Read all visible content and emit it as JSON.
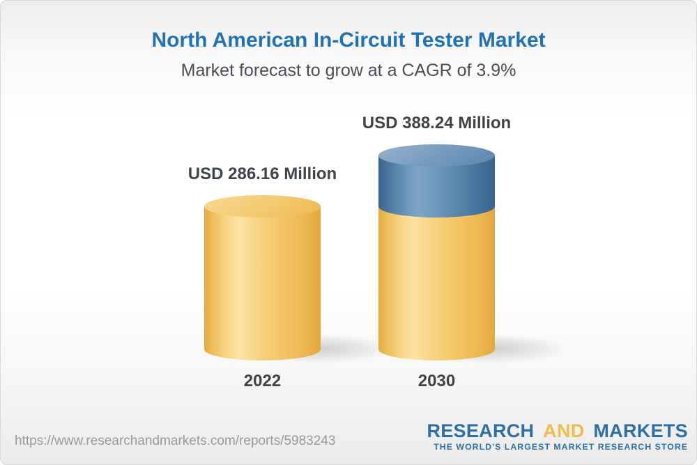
{
  "chart_data": {
    "type": "bar",
    "bar_style": "3d-cylinder",
    "title": "North American In-Circuit Tester Market",
    "subtitle": "Market forecast to grow at a CAGR of 3.9%",
    "categories": [
      "2022",
      "2030"
    ],
    "values": [
      286.16,
      388.24
    ],
    "value_labels": [
      "USD 286.16 Million",
      "USD 388.24 Million"
    ],
    "unit": "USD Million",
    "cagr_percent": 3.9,
    "grid": false,
    "legend_position": "none",
    "axes_visible": false,
    "colors": {
      "base_segment": "#F5C868",
      "growth_segment": "#5A86AF",
      "title_blue": "#2173B4",
      "label_dark": "#3F4449",
      "url_gray": "#97999B"
    }
  },
  "footer": {
    "url": "https://www.researchandmarkets.com/reports/5983243",
    "logo": {
      "word1": "RESEARCH",
      "word2": "AND",
      "word3": "MARKETS",
      "tagline": "THE WORLD'S LARGEST MARKET RESEARCH STORE",
      "blue": "#2E6FA4",
      "gold": "#F0BC4B"
    }
  }
}
